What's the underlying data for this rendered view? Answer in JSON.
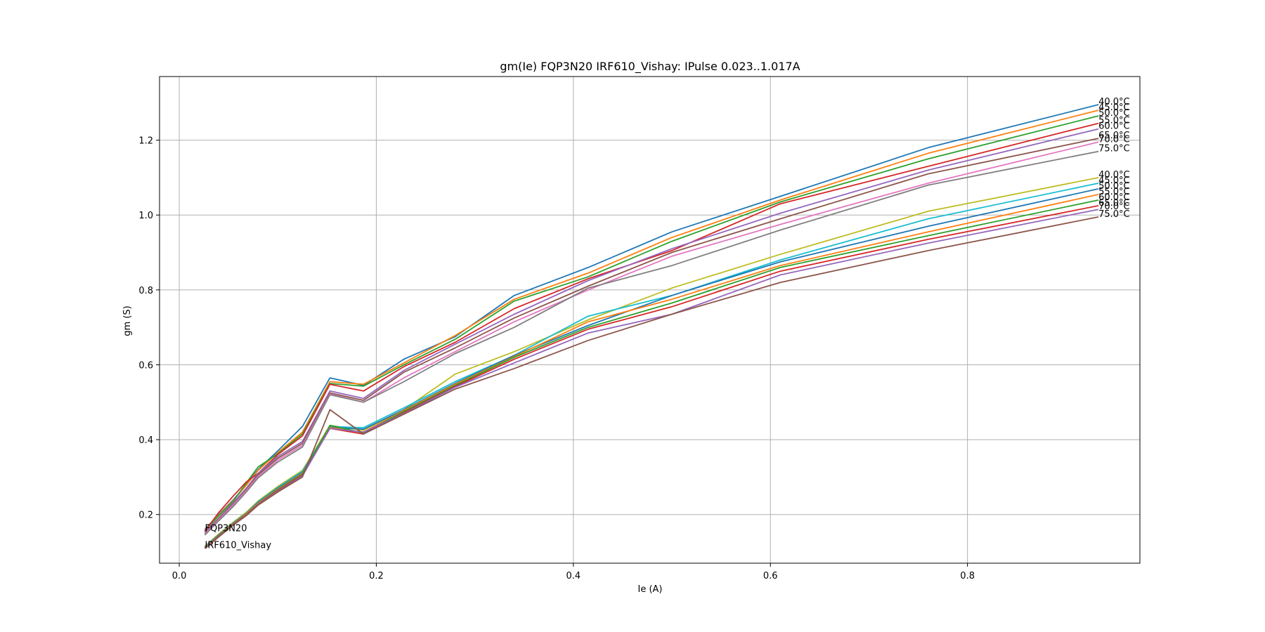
{
  "chart_data": {
    "type": "line",
    "title": "gm(Ie) FQP3N20 IRF610_Vishay: IPulse 0.023..1.017A",
    "xlabel": "Ie (A)",
    "ylabel": "gm (S)",
    "xlim": [
      -0.02,
      0.975
    ],
    "ylim": [
      0.07,
      1.37
    ],
    "xticks": [
      0.0,
      0.2,
      0.4,
      0.6,
      0.8
    ],
    "xtick_labels": [
      "0.0",
      "0.2",
      "0.4",
      "0.6",
      "0.8"
    ],
    "yticks": [
      0.2,
      0.4,
      0.6,
      0.8,
      1.0,
      1.2
    ],
    "ytick_labels": [
      "0.2",
      "0.4",
      "0.6",
      "0.8",
      "1.0",
      "1.2"
    ],
    "grid": true,
    "x": [
      0.026,
      0.04,
      0.055,
      0.068,
      0.08,
      0.1,
      0.125,
      0.153,
      0.187,
      0.228,
      0.28,
      0.34,
      0.415,
      0.5,
      0.61,
      0.76,
      0.933
    ],
    "groups": [
      {
        "label": "FQP3N20",
        "label_x": 0.026,
        "label_y": 0.165
      },
      {
        "label": "IRF610_Vishay",
        "label_x": 0.026,
        "label_y": 0.12
      }
    ],
    "series": [
      {
        "name": "40.0°C",
        "group": "FQP3N20",
        "color": "#1f77b4",
        "end_label": "40.0°C",
        "values": [
          0.16,
          0.2,
          0.24,
          0.28,
          0.32,
          0.37,
          0.435,
          0.565,
          0.545,
          0.615,
          0.675,
          0.785,
          0.86,
          0.955,
          1.05,
          1.18,
          1.295
        ]
      },
      {
        "name": "45.0°C",
        "group": "FQP3N20",
        "color": "#ff7f0e",
        "end_label": "45.0°C",
        "values": [
          0.158,
          0.198,
          0.238,
          0.278,
          0.318,
          0.365,
          0.42,
          0.555,
          0.548,
          0.605,
          0.678,
          0.775,
          0.845,
          0.94,
          1.04,
          1.165,
          1.28
        ]
      },
      {
        "name": "50.0°C",
        "group": "FQP3N20",
        "color": "#2ca02c",
        "end_label": "50.0°C",
        "values": [
          0.157,
          0.196,
          0.236,
          0.284,
          0.327,
          0.362,
          0.415,
          0.55,
          0.543,
          0.6,
          0.668,
          0.77,
          0.835,
          0.93,
          1.035,
          1.15,
          1.265
        ]
      },
      {
        "name": "55.0°C",
        "group": "FQP3N20",
        "color": "#d62728",
        "end_label": "55.0°C",
        "values": [
          0.155,
          0.205,
          0.25,
          0.287,
          0.31,
          0.36,
          0.41,
          0.548,
          0.53,
          0.595,
          0.66,
          0.75,
          0.83,
          0.905,
          1.03,
          1.13,
          1.245
        ]
      },
      {
        "name": "60.0°C",
        "group": "FQP3N20",
        "color": "#9467bd",
        "end_label": "60.0°C",
        "values": [
          0.153,
          0.19,
          0.232,
          0.27,
          0.31,
          0.355,
          0.395,
          0.53,
          0.51,
          0.585,
          0.655,
          0.735,
          0.825,
          0.91,
          1.005,
          1.12,
          1.23
        ]
      },
      {
        "name": "65.0°C",
        "group": "FQP3N20",
        "color": "#8c564b",
        "end_label": "65.0°C",
        "values": [
          0.15,
          0.188,
          0.228,
          0.266,
          0.306,
          0.35,
          0.39,
          0.525,
          0.505,
          0.58,
          0.645,
          0.725,
          0.81,
          0.9,
          0.99,
          1.11,
          1.205
        ]
      },
      {
        "name": "70.0°C",
        "group": "FQP3N20",
        "color": "#e377c2",
        "end_label": "70.0°C",
        "values": [
          0.148,
          0.186,
          0.226,
          0.264,
          0.302,
          0.345,
          0.385,
          0.522,
          0.5,
          0.565,
          0.635,
          0.715,
          0.8,
          0.89,
          0.975,
          1.085,
          1.195
        ]
      },
      {
        "name": "75.0°C",
        "group": "FQP3N20",
        "color": "#7f7f7f",
        "end_label": "75.0°C",
        "values": [
          0.145,
          0.183,
          0.222,
          0.26,
          0.298,
          0.34,
          0.38,
          0.52,
          0.5,
          0.555,
          0.63,
          0.7,
          0.805,
          0.865,
          0.96,
          1.08,
          1.17
        ]
      },
      {
        "name": "40.0°C",
        "group": "IRF610_Vishay",
        "color": "#bcbd22",
        "end_label": "40.0°C",
        "values": [
          0.115,
          0.148,
          0.18,
          0.206,
          0.236,
          0.275,
          0.318,
          0.438,
          0.425,
          0.48,
          0.575,
          0.635,
          0.72,
          0.805,
          0.895,
          1.01,
          1.1
        ]
      },
      {
        "name": "45.0°C",
        "group": "IRF610_Vishay",
        "color": "#17becf",
        "end_label": "45.0°C",
        "values": [
          0.114,
          0.146,
          0.178,
          0.204,
          0.234,
          0.272,
          0.315,
          0.435,
          0.432,
          0.485,
          0.555,
          0.625,
          0.73,
          0.785,
          0.88,
          0.99,
          1.085
        ]
      },
      {
        "name": "50.0°C",
        "group": "IRF610_Vishay",
        "color": "#1f77b4",
        "end_label": "50.0°C",
        "values": [
          0.113,
          0.145,
          0.177,
          0.203,
          0.232,
          0.27,
          0.312,
          0.433,
          0.428,
          0.48,
          0.55,
          0.625,
          0.705,
          0.785,
          0.875,
          0.97,
          1.07
        ]
      },
      {
        "name": "55.0°C",
        "group": "IRF610_Vishay",
        "color": "#ff7f0e",
        "end_label": "55.0°C",
        "values": [
          0.112,
          0.144,
          0.176,
          0.202,
          0.23,
          0.268,
          0.31,
          0.432,
          0.42,
          0.478,
          0.548,
          0.622,
          0.715,
          0.775,
          0.865,
          0.955,
          1.055
        ]
      },
      {
        "name": "60.0°C",
        "group": "IRF610_Vishay",
        "color": "#2ca02c",
        "end_label": "60.0°C",
        "values": [
          0.111,
          0.143,
          0.175,
          0.2,
          0.228,
          0.266,
          0.308,
          0.438,
          0.418,
          0.475,
          0.545,
          0.62,
          0.7,
          0.765,
          0.86,
          0.945,
          1.04
        ]
      },
      {
        "name": "65.0°C",
        "group": "IRF610_Vishay",
        "color": "#d62728",
        "end_label": "65.0°C",
        "values": [
          0.11,
          0.142,
          0.174,
          0.199,
          0.227,
          0.264,
          0.305,
          0.43,
          0.415,
          0.472,
          0.542,
          0.615,
          0.695,
          0.755,
          0.85,
          0.935,
          1.025
        ]
      },
      {
        "name": "70.0°C",
        "group": "IRF610_Vishay",
        "color": "#9467bd",
        "end_label": "70.0°C",
        "values": [
          0.11,
          0.141,
          0.173,
          0.198,
          0.226,
          0.262,
          0.303,
          0.43,
          0.42,
          0.47,
          0.54,
          0.605,
          0.685,
          0.735,
          0.84,
          0.925,
          1.015
        ]
      },
      {
        "name": "75.0°C",
        "group": "IRF610_Vishay",
        "color": "#8c564b",
        "end_label": "75.0°C",
        "values": [
          0.109,
          0.14,
          0.172,
          0.197,
          0.225,
          0.26,
          0.3,
          0.48,
          0.415,
          0.468,
          0.535,
          0.59,
          0.665,
          0.735,
          0.82,
          0.905,
          0.995
        ]
      }
    ]
  }
}
